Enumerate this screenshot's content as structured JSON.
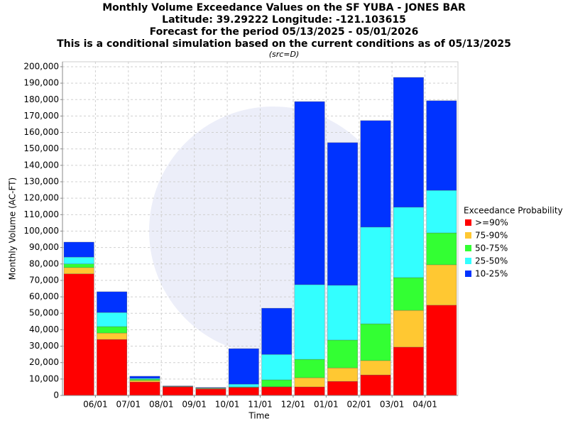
{
  "chart_data": {
    "type": "stacked_bar",
    "title": "Monthly Volume Exceedance Values on the SF YUBA - JONES BAR",
    "title_lines": [
      "Latitude: 39.29222 Longitude: -121.103615",
      "Forecast for the period 05/13/2025 - 05/01/2026",
      "This is a conditional simulation based on the current conditions as of 05/13/2025"
    ],
    "subtitle": "(src=D)",
    "x_label": "Time",
    "y_label": "Monthly Volume (AC-FT)",
    "legend_title": "Exceedance Probability",
    "xtick_labels": [
      "06/01",
      "07/01",
      "08/01",
      "09/01",
      "10/01",
      "11/01",
      "12/01",
      "01/01",
      "02/01",
      "03/01",
      "04/01"
    ],
    "series": [
      {
        "name": ">=90%",
        "color": "#ff0000",
        "values": [
          74000,
          34100,
          8200,
          5200,
          3900,
          4800,
          5200,
          5200,
          8600,
          12500,
          29400,
          54900
        ]
      },
      {
        "name": "75-90%",
        "color": "#ffc832",
        "values": [
          3800,
          3900,
          900,
          200,
          300,
          200,
          100,
          5600,
          8200,
          8700,
          22400,
          24600
        ]
      },
      {
        "name": "50-75%",
        "color": "#33ff33",
        "values": [
          2200,
          3900,
          800,
          100,
          200,
          200,
          4200,
          11200,
          16900,
          22400,
          19900,
          19400
        ]
      },
      {
        "name": "25-50%",
        "color": "#33ffff",
        "values": [
          4200,
          8600,
          500,
          100,
          200,
          1700,
          15500,
          45400,
          33300,
          58800,
          42800,
          25900
        ]
      },
      {
        "name": "10-25%",
        "color": "#0033ff",
        "values": [
          9100,
          12600,
          1300,
          200,
          300,
          21600,
          28100,
          111400,
          86800,
          64800,
          79000,
          54500
        ]
      }
    ],
    "ylim": [
      0,
      203000
    ],
    "yticks": [
      0,
      {
        "value": 10000,
        "label": "10,000"
      },
      {
        "value": 20000,
        "label": "20,000"
      },
      {
        "value": 30000,
        "label": "30,000"
      },
      {
        "value": 40000,
        "label": "40,000"
      },
      {
        "value": 50000,
        "label": "50,000"
      },
      {
        "value": 60000,
        "label": "60,000"
      },
      {
        "value": 70000,
        "label": "70,000"
      },
      {
        "value": 80000,
        "label": "80,000"
      },
      {
        "value": 90000,
        "label": "90,000"
      },
      {
        "value": 100000,
        "label": "100,000"
      },
      {
        "value": 110000,
        "label": "110,000"
      },
      {
        "value": 120000,
        "label": "120,000"
      },
      {
        "value": 130000,
        "label": "130,000"
      },
      {
        "value": 140000,
        "label": "140,000"
      },
      {
        "value": 150000,
        "label": "150,000"
      },
      {
        "value": 160000,
        "label": "160,000"
      },
      {
        "value": 170000,
        "label": "170,000"
      },
      {
        "value": 180000,
        "label": "180,000"
      },
      {
        "value": 190000,
        "label": "190,000"
      },
      {
        "value": 200000,
        "label": "200,000"
      }
    ],
    "grid": true
  }
}
